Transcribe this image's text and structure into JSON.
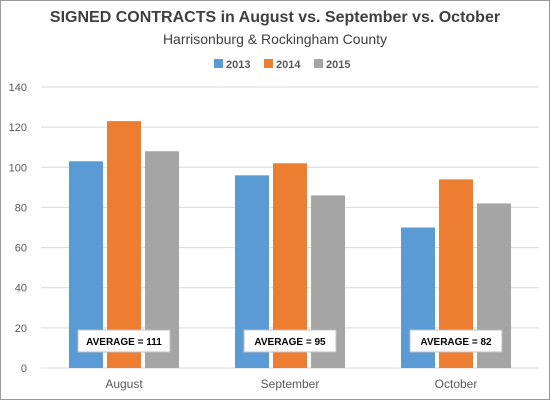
{
  "colors": {
    "background": "#ffffff",
    "border": "#9a9a9a",
    "grid": "#d9d9d9",
    "axis_text": "#595959",
    "title_text": "#404040",
    "annotation_border": "#bfbfbf"
  },
  "chart_data": {
    "type": "bar",
    "title": "SIGNED CONTRACTS in August vs. September vs. October",
    "subtitle": "Harrisonburg & Rockingham County",
    "xlabel": "",
    "ylabel": "",
    "ylim": [
      0,
      140
    ],
    "yticks": [
      "0",
      "20",
      "40",
      "60",
      "80",
      "100",
      "120",
      "140"
    ],
    "grid": true,
    "legend_position": "top-center",
    "categories": [
      "August",
      "September",
      "October"
    ],
    "series": [
      {
        "name": "2013",
        "color": "#5b9bd5",
        "values": [
          103,
          96,
          70
        ]
      },
      {
        "name": "2014",
        "color": "#ed7d31",
        "values": [
          123,
          102,
          94
        ]
      },
      {
        "name": "2015",
        "color": "#a5a5a5",
        "values": [
          108,
          86,
          82
        ]
      }
    ],
    "annotations": [
      "AVERAGE = 111",
      "AVERAGE = 95",
      "AVERAGE = 82"
    ]
  }
}
